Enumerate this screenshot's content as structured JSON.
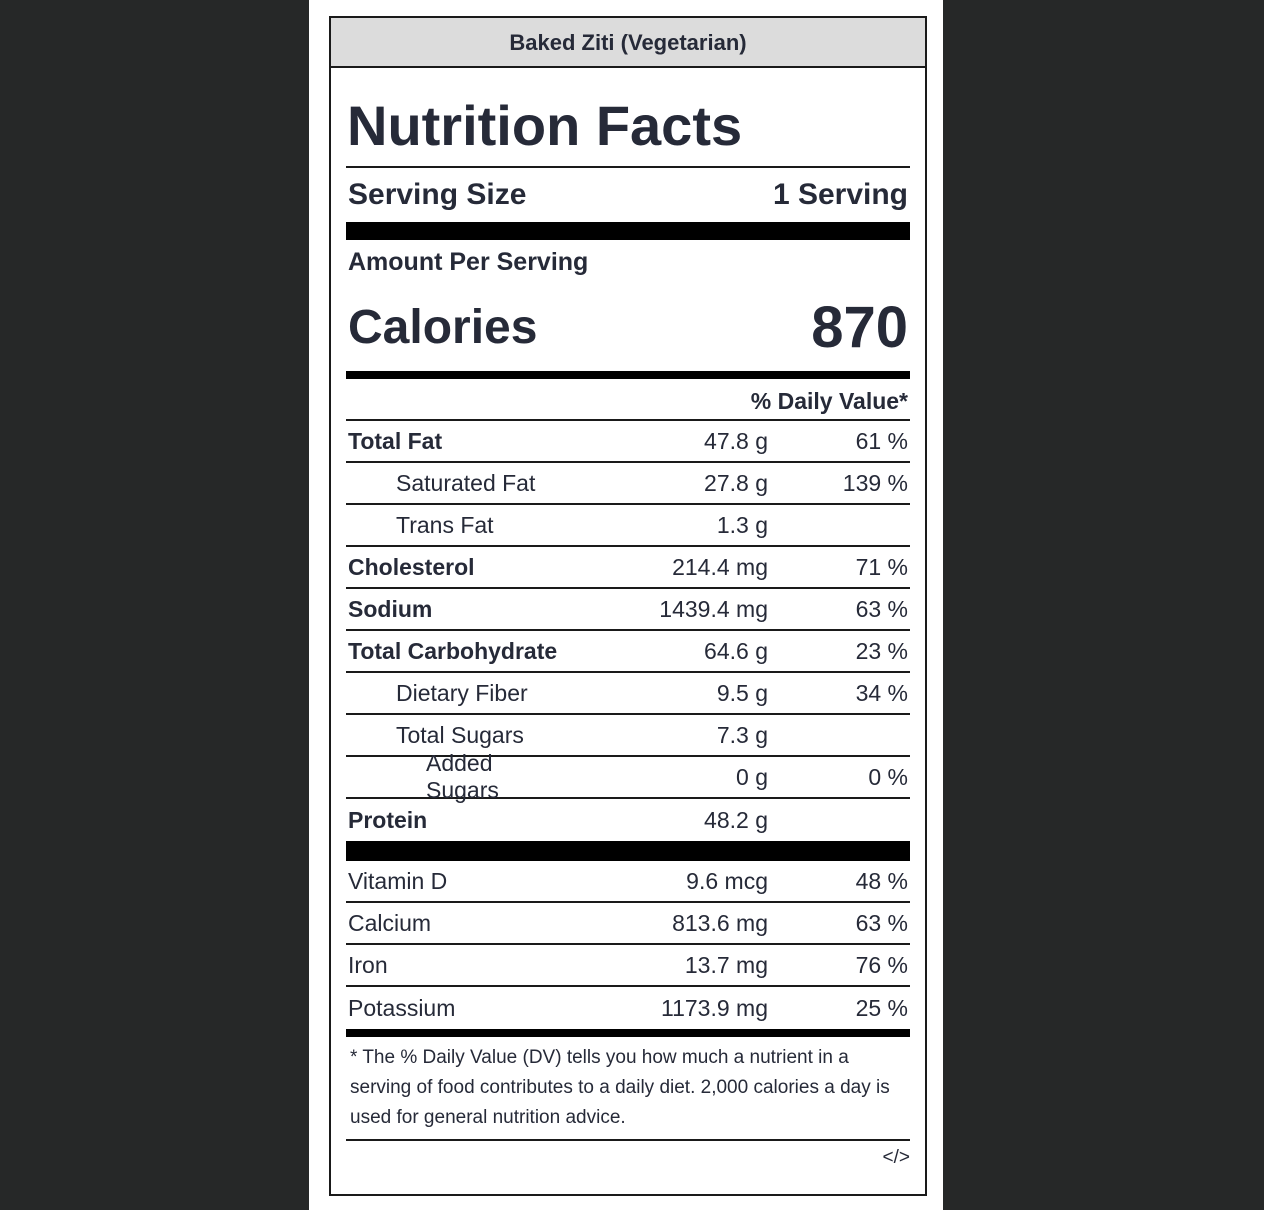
{
  "header": {
    "title": "Baked Ziti (Vegetarian)"
  },
  "label": {
    "heading": "Nutrition Facts",
    "serving_size_label": "Serving Size",
    "serving_size": "1 Serving",
    "amount_per_serving": "Amount Per Serving",
    "calories_label": "Calories",
    "calories": 870,
    "daily_value_header": "% Daily Value*",
    "nutrients": [
      {
        "name": "Total Fat",
        "amount": "47.8 g",
        "daily_value": "61 %"
      },
      {
        "name": "Saturated Fat",
        "amount": "27.8 g",
        "daily_value": "139 %"
      },
      {
        "name": "Trans Fat",
        "amount": "1.3 g"
      },
      {
        "name": "Cholesterol",
        "amount": "214.4 mg",
        "daily_value": "71 %"
      },
      {
        "name": "Sodium",
        "amount": "1439.4 mg",
        "daily_value": "63 %"
      },
      {
        "name": "Total Carbohydrate",
        "amount": "64.6 g",
        "daily_value": "23 %"
      },
      {
        "name": "Dietary Fiber",
        "amount": "9.5 g",
        "daily_value": "34 %"
      },
      {
        "name": "Total Sugars",
        "amount": "7.3 g"
      },
      {
        "name": "Added Sugars",
        "amount": "0 g",
        "daily_value": "0 %"
      },
      {
        "name": "Protein",
        "amount": "48.2 g"
      }
    ],
    "vitamins": [
      {
        "name": "Vitamin D",
        "amount": "9.6 mcg",
        "daily_value": "48 %"
      },
      {
        "name": "Calcium",
        "amount": "813.6 mg",
        "daily_value": "63 %"
      },
      {
        "name": "Iron",
        "amount": "13.7 mg",
        "daily_value": "76 %"
      },
      {
        "name": "Potassium",
        "amount": "1173.9 mg",
        "daily_value": "25 %"
      }
    ],
    "footnote": "* The % Daily Value (DV) tells you how much a nutrient in a serving of food contributes to a daily diet. 2,000 calories a day is used for general nutrition advice.",
    "embed_icon": "</>"
  }
}
